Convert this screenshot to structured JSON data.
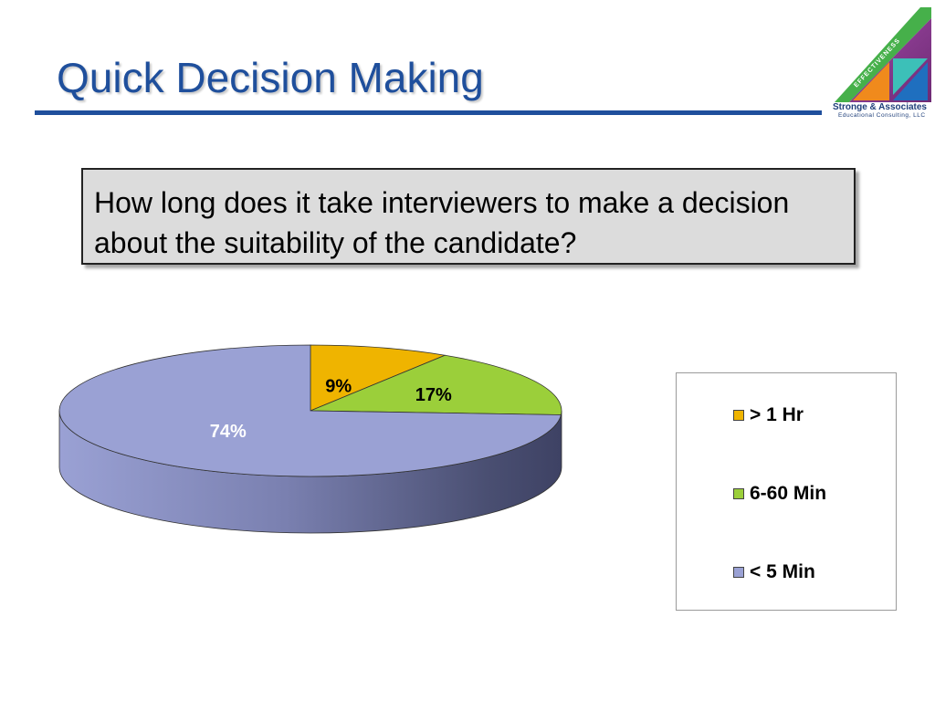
{
  "slide": {
    "title": "Quick Decision Making",
    "question": "How long does it take interviewers to make a decision about the suitability of the candidate?"
  },
  "logo": {
    "banner": "EFFECTIVENESS",
    "name": "Stronge & Associates",
    "subtitle": "Educational Consulting, LLC",
    "colors": {
      "green": "#46b04a",
      "purple": "#8a3a8f",
      "orange": "#f08a1c",
      "teal": "#3cc0b8",
      "blue": "#1f6fbf"
    }
  },
  "chart_data": {
    "type": "pie",
    "style": "3d",
    "categories": [
      "> 1 Hr",
      "6-60 Min",
      "< 5 Min"
    ],
    "values": [
      9,
      17,
      74
    ],
    "labels": [
      "9%",
      "17%",
      "74%"
    ],
    "colors": [
      "#efb400",
      "#9bcf3a",
      "#9aa1d4"
    ],
    "legend": "right"
  },
  "legend": {
    "items": [
      {
        "label": "> 1 Hr",
        "color": "#efb400"
      },
      {
        "label": "6-60 Min",
        "color": "#9bcf3a"
      },
      {
        "label": "< 5 Min",
        "color": "#9aa1d4"
      }
    ]
  }
}
